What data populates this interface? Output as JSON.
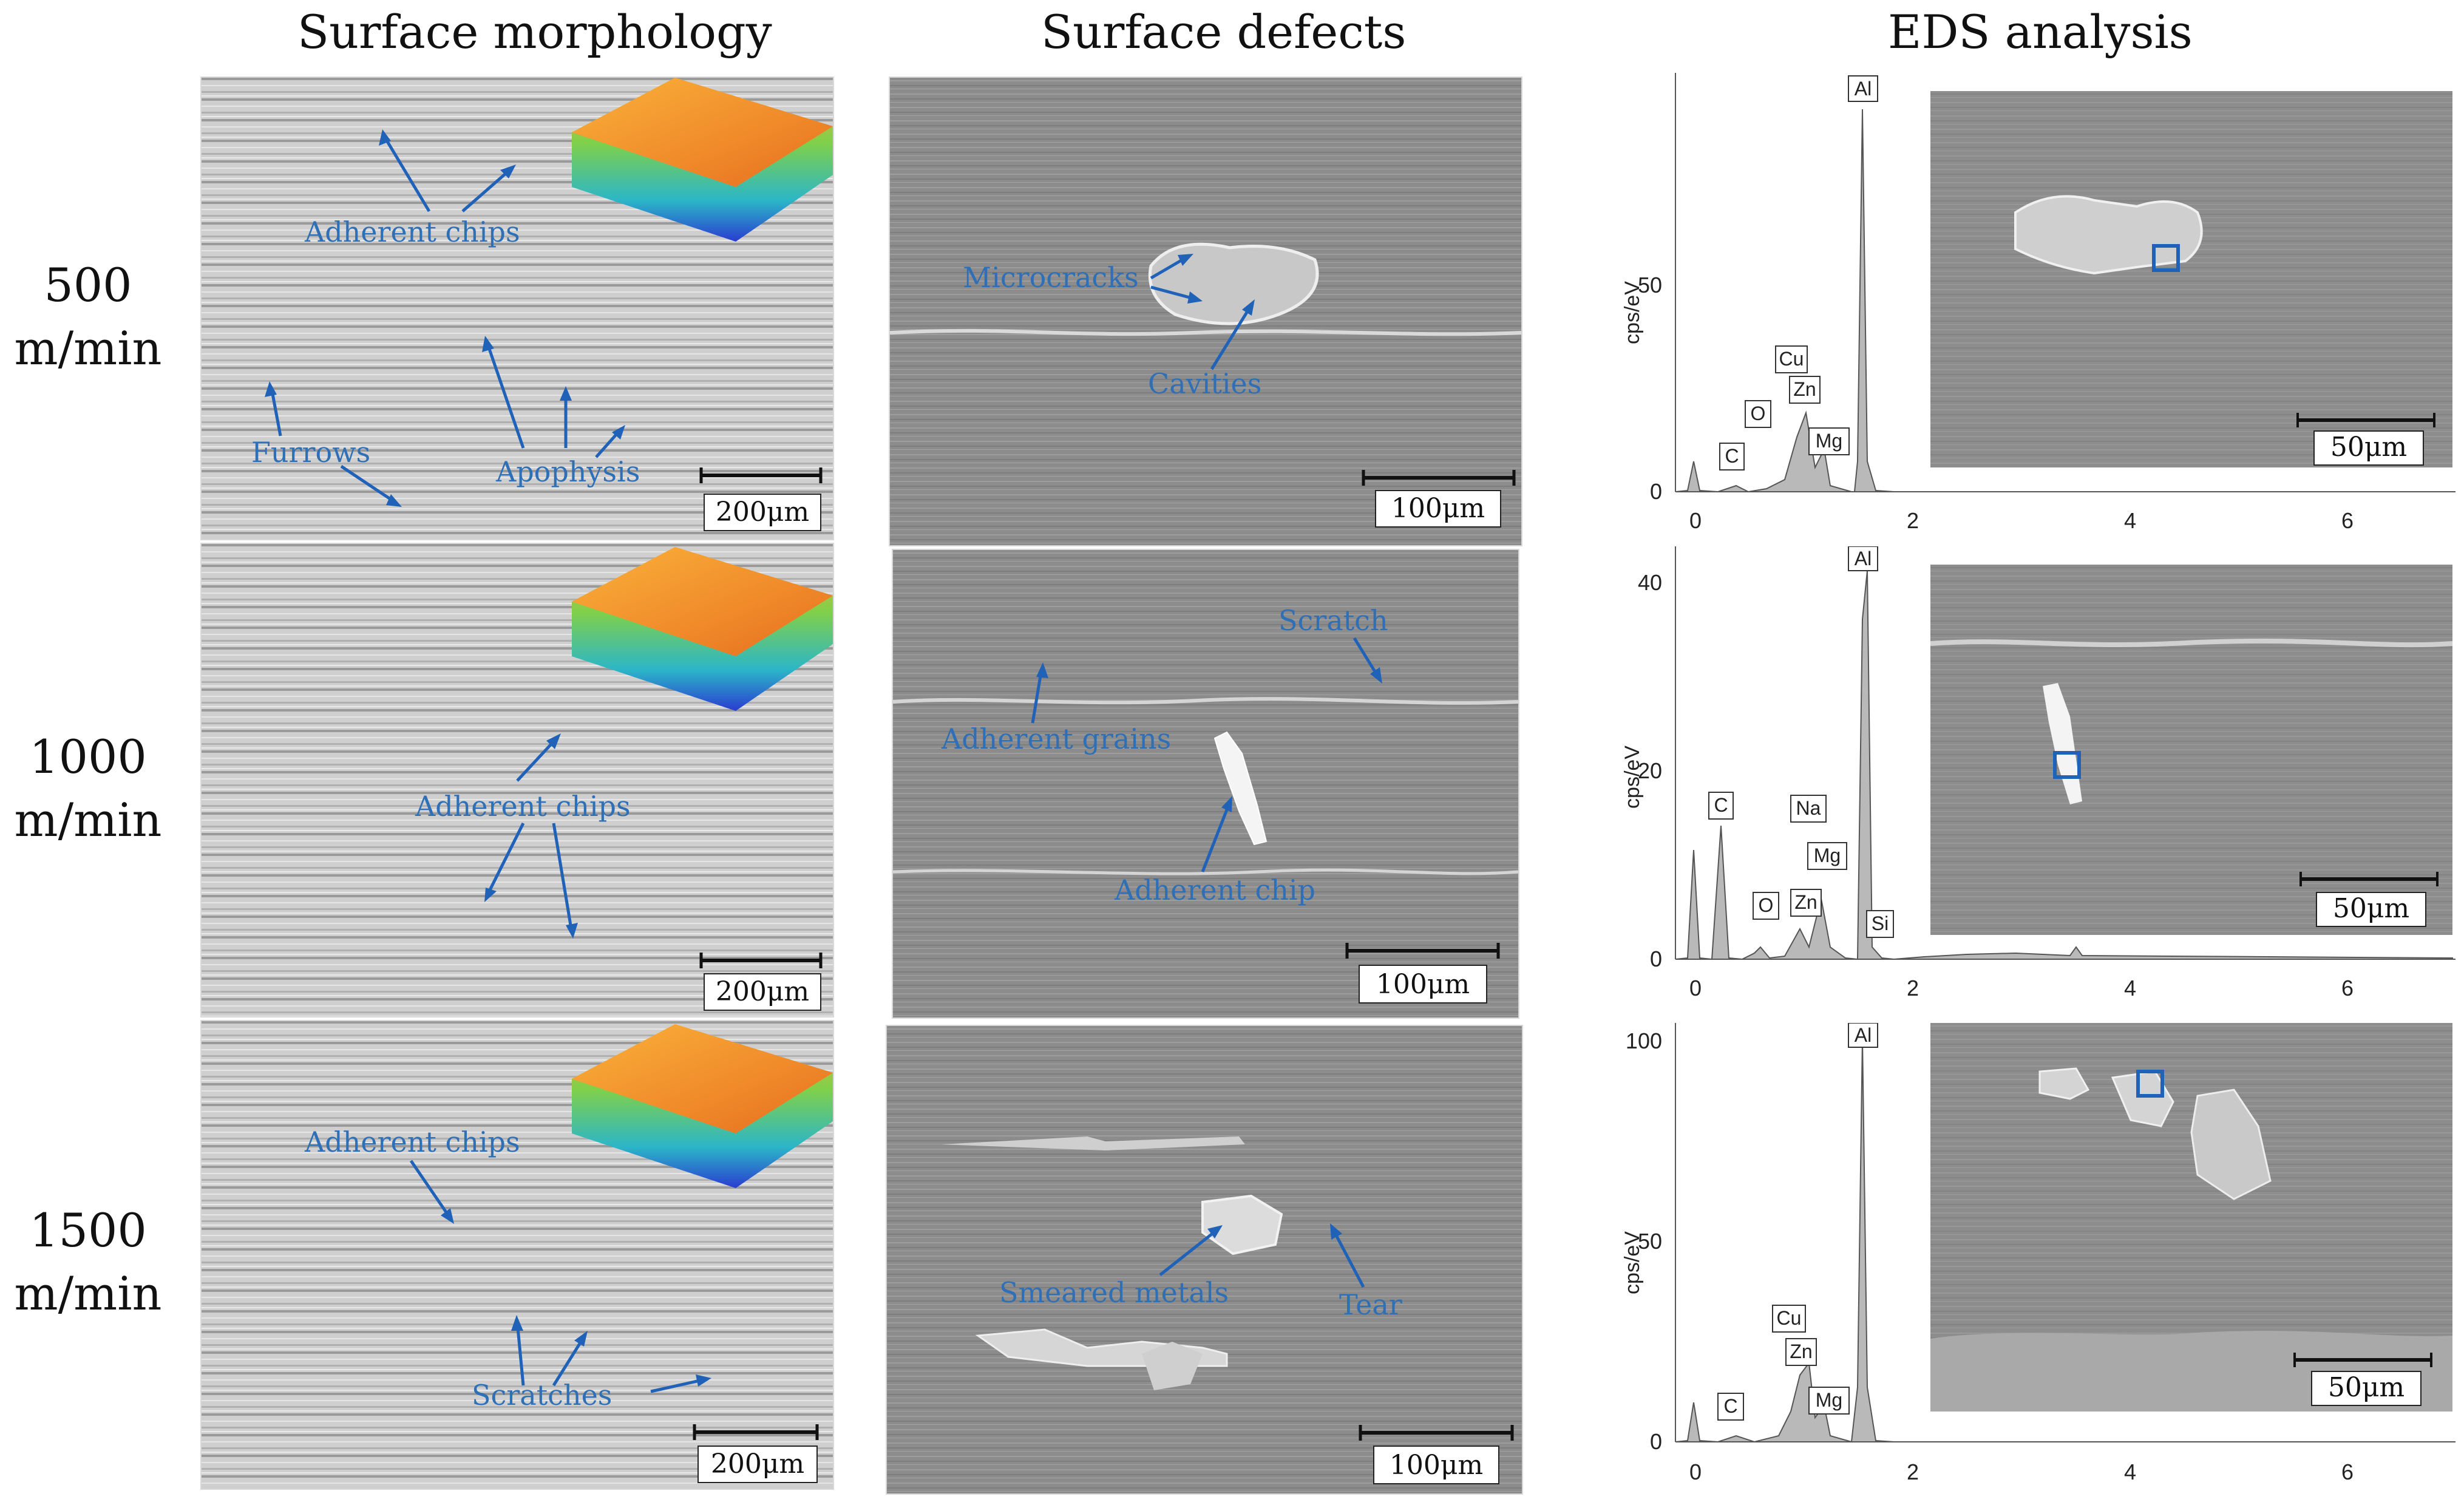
{
  "columns": {
    "morphology": "Surface morphology",
    "defects": "Surface defects",
    "eds": "EDS analysis"
  },
  "rows": [
    {
      "speed": "500",
      "unit": "m/min"
    },
    {
      "speed": "1000",
      "unit": "m/min"
    },
    {
      "speed": "1500",
      "unit": "m/min"
    }
  ],
  "scale": {
    "morphology": "200μm",
    "defects": "100μm",
    "eds_inset": "50μm"
  },
  "morphology_annotations": {
    "r1": {
      "a": "Adherent chips",
      "b": "Furrows",
      "c": "Apophysis"
    },
    "r2": {
      "a": "Adherent chips"
    },
    "r3": {
      "a": "Adherent chips",
      "b": "Scratches"
    }
  },
  "defect_annotations": {
    "r1": {
      "a": "Microcracks",
      "b": "Cavities"
    },
    "r2": {
      "a": "Scratch",
      "b": "Adherent grains",
      "c": "Adherent chip"
    },
    "r3": {
      "a": "Smeared metals",
      "b": "Tear"
    }
  },
  "eds": {
    "ylabel": "cps/eV",
    "xticks": [
      "0",
      "2",
      "4",
      "6"
    ],
    "panels": [
      {
        "yticks": [
          "0",
          "50"
        ],
        "elements": [
          "Al",
          "Cu",
          "O",
          "Zn",
          "C",
          "Mg"
        ]
      },
      {
        "yticks": [
          "0",
          "20",
          "40"
        ],
        "elements": [
          "Al",
          "C",
          "Na",
          "Mg",
          "O",
          "Zn",
          "Si"
        ]
      },
      {
        "yticks": [
          "0",
          "50",
          "100"
        ],
        "elements": [
          "Al",
          "Cu",
          "Zn",
          "C",
          "Mg"
        ]
      }
    ]
  },
  "colors": {
    "annotation": "#2f6fb5",
    "marker": "#1f62b8"
  }
}
